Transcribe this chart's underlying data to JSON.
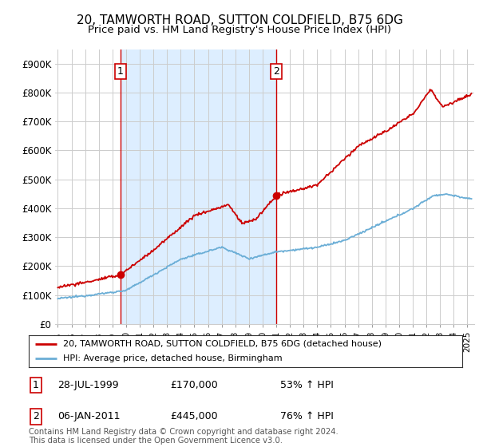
{
  "title": "20, TAMWORTH ROAD, SUTTON COLDFIELD, B75 6DG",
  "subtitle": "Price paid vs. HM Land Registry's House Price Index (HPI)",
  "title_fontsize": 11,
  "subtitle_fontsize": 9.5,
  "ylabel_ticks": [
    "£0",
    "£100K",
    "£200K",
    "£300K",
    "£400K",
    "£500K",
    "£600K",
    "£700K",
    "£800K",
    "£900K"
  ],
  "ytick_values": [
    0,
    100000,
    200000,
    300000,
    400000,
    500000,
    600000,
    700000,
    800000,
    900000
  ],
  "ylim": [
    0,
    950000
  ],
  "xlim_start": 1994.8,
  "xlim_end": 2025.5,
  "sale1_date": 1999.57,
  "sale1_price": 170000,
  "sale2_date": 2011.02,
  "sale2_price": 445000,
  "sale1_date_str": "28-JUL-1999",
  "sale2_date_str": "06-JAN-2011",
  "sale1_hpi_pct": "53% ↑ HPI",
  "sale2_hpi_pct": "76% ↑ HPI",
  "hpi_color": "#6baed6",
  "price_color": "#cc0000",
  "vline_color": "#cc0000",
  "shade_color": "#ddeeff",
  "legend_label_price": "20, TAMWORTH ROAD, SUTTON COLDFIELD, B75 6DG (detached house)",
  "legend_label_hpi": "HPI: Average price, detached house, Birmingham",
  "footnote": "Contains HM Land Registry data © Crown copyright and database right 2024.\nThis data is licensed under the Open Government Licence v3.0.",
  "background_color": "#ffffff",
  "grid_color": "#cccccc"
}
